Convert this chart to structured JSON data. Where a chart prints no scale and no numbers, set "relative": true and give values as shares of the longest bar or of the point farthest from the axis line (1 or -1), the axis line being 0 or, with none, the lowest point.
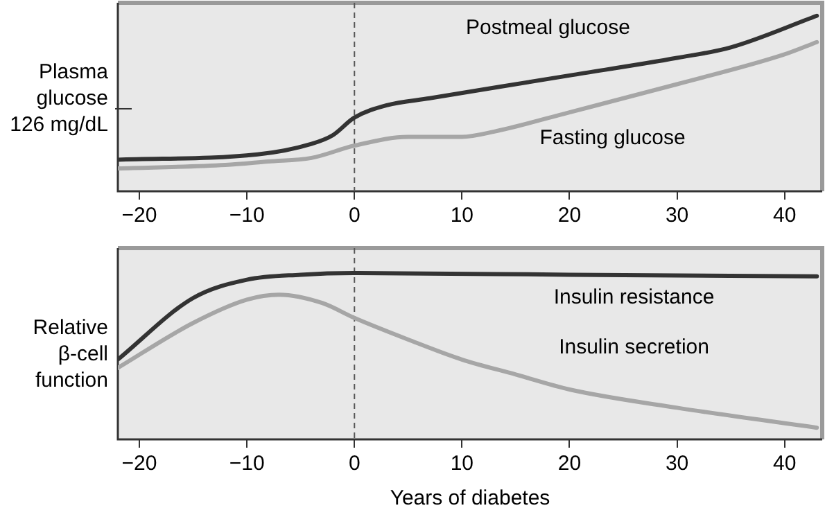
{
  "chart_data": [
    {
      "type": "line",
      "relative": true,
      "ylabel": "Plasma glucose",
      "annotations": [
        "126 mg/dL"
      ],
      "xlim": [
        -22,
        43.5
      ],
      "xticks": [
        -20,
        -10,
        0,
        10,
        20,
        30,
        40
      ],
      "grid": false,
      "legend": false,
      "marker": "none",
      "line_style": "solid",
      "ref_lines": [
        {
          "axis": "x",
          "value": 0,
          "line_style": "dashed",
          "color": "#555555"
        }
      ],
      "series": [
        {
          "name": "Postmeal glucose",
          "color": "#333333",
          "x": [
            -22,
            -9,
            -4,
            -2,
            0,
            3,
            7,
            20,
            30,
            35,
            43
          ],
          "values": [
            0.18,
            0.21,
            0.27,
            0.32,
            0.42,
            0.49,
            0.53,
            0.66,
            0.76,
            0.82,
            1
          ]
        },
        {
          "name": "Fasting glucose",
          "color": "#a6a6a6",
          "x": [
            -22,
            -12,
            -8,
            -4,
            0,
            5,
            10,
            13,
            20,
            30,
            40,
            43
          ],
          "values": [
            0.13,
            0.15,
            0.17,
            0.19,
            0.26,
            0.31,
            0.31,
            0.34,
            0.45,
            0.61,
            0.78,
            0.85
          ]
        }
      ]
    },
    {
      "type": "line",
      "relative": true,
      "ylabel": "Relative β-cell function",
      "xlabel": "Years of diabetes",
      "xlim": [
        -22,
        43.5
      ],
      "xticks": [
        -20,
        -10,
        0,
        10,
        20,
        30,
        40
      ],
      "grid": false,
      "legend": false,
      "marker": "none",
      "line_style": "solid",
      "ref_lines": [
        {
          "axis": "x",
          "value": 0,
          "line_style": "dashed",
          "color": "#555555"
        }
      ],
      "series": [
        {
          "name": "Insulin resistance",
          "color": "#333333",
          "x": [
            -22,
            -15,
            -10,
            -5,
            0,
            20,
            43
          ],
          "values": [
            0.48,
            0.85,
            0.96,
            0.99,
            1,
            0.99,
            0.98
          ]
        },
        {
          "name": "Insulin secretion",
          "color": "#a6a6a6",
          "x": [
            -22,
            -15,
            -10,
            -7,
            -3,
            0,
            5,
            10,
            15,
            20,
            30,
            43
          ],
          "values": [
            0.43,
            0.7,
            0.84,
            0.87,
            0.82,
            0.73,
            0.6,
            0.48,
            0.39,
            0.3,
            0.19,
            0.07
          ]
        }
      ]
    }
  ]
}
